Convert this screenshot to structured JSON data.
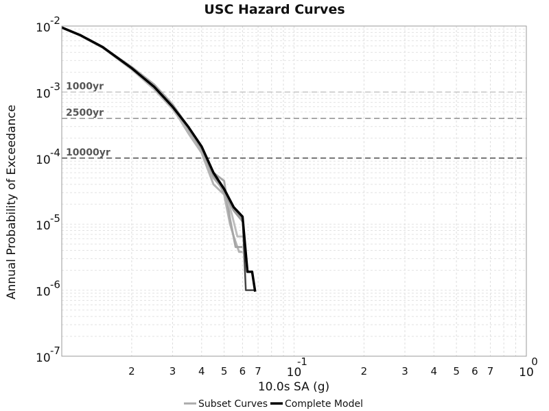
{
  "chart_data": {
    "type": "line",
    "title": "USC Hazard Curves",
    "xlabel": "10.0s SA (g)",
    "ylabel": "Annual Probability of Exceedance",
    "xscale": "log",
    "yscale": "log",
    "xlim": [
      0.01,
      1.0
    ],
    "ylim": [
      1e-07,
      0.01
    ],
    "grid": true,
    "legend_position": "bottom-center",
    "x_major_ticks": [
      {
        "value": 0.1,
        "base": "10",
        "exp": "-1"
      },
      {
        "value": 1.0,
        "base": "10",
        "exp": "0"
      }
    ],
    "x_minor_ticks": [
      {
        "value": 0.02,
        "label": "2"
      },
      {
        "value": 0.03,
        "label": "3"
      },
      {
        "value": 0.04,
        "label": "4"
      },
      {
        "value": 0.05,
        "label": "5"
      },
      {
        "value": 0.06,
        "label": "6"
      },
      {
        "value": 0.07,
        "label": "7"
      },
      {
        "value": 0.2,
        "label": "2"
      },
      {
        "value": 0.3,
        "label": "3"
      },
      {
        "value": 0.4,
        "label": "4"
      },
      {
        "value": 0.5,
        "label": "5"
      },
      {
        "value": 0.6,
        "label": "6"
      },
      {
        "value": 0.7,
        "label": "7"
      }
    ],
    "y_major_ticks": [
      {
        "value": 0.01,
        "base": "10",
        "exp": "-2"
      },
      {
        "value": 0.001,
        "base": "10",
        "exp": "-3"
      },
      {
        "value": 0.0001,
        "base": "10",
        "exp": "-4"
      },
      {
        "value": 1e-05,
        "base": "10",
        "exp": "-5"
      },
      {
        "value": 1e-06,
        "base": "10",
        "exp": "-6"
      },
      {
        "value": 1e-07,
        "base": "10",
        "exp": "-7"
      }
    ],
    "return_periods": [
      {
        "label": "1000yr",
        "value": 0.001,
        "color": "#bbbbbb"
      },
      {
        "label": "2500yr",
        "value": 0.0004,
        "color": "#777777"
      },
      {
        "label": "10000yr",
        "value": 0.0001,
        "color": "#111111"
      }
    ],
    "legend": [
      {
        "label": "Subset Curves",
        "color": "#aaaaaa"
      },
      {
        "label": "Complete Model",
        "color": "#000000"
      }
    ],
    "subset_series": [
      {
        "color": "#b3b3b3",
        "x": [
          0.01,
          0.012,
          0.015,
          0.02,
          0.025,
          0.03,
          0.035,
          0.04,
          0.045,
          0.05,
          0.053,
          0.055,
          0.058,
          0.06
        ],
        "y": [
          0.0095,
          0.0072,
          0.0047,
          0.0023,
          0.0012,
          0.00058,
          0.00024,
          0.00012,
          4e-05,
          2.8e-05,
          1e-05,
          6.5e-06,
          3.8e-06,
          3.8e-06
        ]
      },
      {
        "color": "#a6a6a6",
        "x": [
          0.01,
          0.012,
          0.015,
          0.02,
          0.025,
          0.03,
          0.035,
          0.04,
          0.045,
          0.05,
          0.053,
          0.056,
          0.06
        ],
        "y": [
          0.0095,
          0.0073,
          0.0048,
          0.0024,
          0.0013,
          0.00065,
          0.0003,
          0.00015,
          6e-05,
          4.5e-05,
          1.2e-05,
          4.5e-06,
          4.5e-06
        ]
      },
      {
        "color": "#bdbdbd",
        "x": [
          0.01,
          0.012,
          0.015,
          0.02,
          0.025,
          0.03,
          0.035,
          0.04,
          0.045,
          0.05,
          0.054,
          0.057,
          0.06
        ],
        "y": [
          0.0095,
          0.0072,
          0.0047,
          0.0022,
          0.0011,
          0.00055,
          0.00026,
          0.00013,
          5e-05,
          3.5e-05,
          1.4e-05,
          6.5e-06,
          6.5e-06
        ]
      },
      {
        "color": "#9e9e9e",
        "x": [
          0.01,
          0.012,
          0.015,
          0.02,
          0.025,
          0.03,
          0.035,
          0.04,
          0.045,
          0.05,
          0.055,
          0.06
        ],
        "y": [
          0.0095,
          0.0073,
          0.0048,
          0.0023,
          0.0012,
          0.0006,
          0.00028,
          0.00014,
          5.5e-05,
          3e-05,
          1.6e-05,
          1.1e-05
        ]
      },
      {
        "color": "#b0b0b0",
        "x": [
          0.01,
          0.012,
          0.015,
          0.02,
          0.025,
          0.03,
          0.035,
          0.04,
          0.045,
          0.05,
          0.055,
          0.06
        ],
        "y": [
          0.0095,
          0.0072,
          0.0047,
          0.0023,
          0.00115,
          0.00058,
          0.00027,
          0.00013,
          5e-05,
          3.2e-05,
          1.8e-05,
          1.3e-05
        ]
      },
      {
        "color": "#999999",
        "x": [
          0.01,
          0.012,
          0.015,
          0.02,
          0.025,
          0.03,
          0.035,
          0.04,
          0.045,
          0.05,
          0.055,
          0.06
        ],
        "y": [
          0.0095,
          0.0073,
          0.0048,
          0.0023,
          0.0012,
          0.0006,
          0.00029,
          0.00014,
          5.5e-05,
          3.3e-05,
          1.7e-05,
          1.2e-05
        ]
      }
    ],
    "dark_subset_series": {
      "color": "#444444",
      "x": [
        0.01,
        0.012,
        0.015,
        0.02,
        0.025,
        0.03,
        0.035,
        0.04,
        0.045,
        0.05,
        0.055,
        0.06,
        0.062,
        0.064,
        0.068
      ],
      "y": [
        0.0095,
        0.0073,
        0.0048,
        0.0023,
        0.0012,
        0.0006,
        0.0003,
        0.00015,
        6e-05,
        3.5e-05,
        1.8e-05,
        1.3e-05,
        1e-06,
        1e-06,
        1e-06
      ]
    },
    "complete_model": {
      "color": "#000000",
      "x": [
        0.01,
        0.012,
        0.015,
        0.02,
        0.025,
        0.03,
        0.035,
        0.04,
        0.045,
        0.05,
        0.055,
        0.06,
        0.063,
        0.066,
        0.068
      ],
      "y": [
        0.0095,
        0.0073,
        0.0048,
        0.0023,
        0.0012,
        0.0006,
        0.0003,
        0.00015,
        6e-05,
        3.4e-05,
        1.8e-05,
        1.3e-05,
        1.9e-06,
        1.9e-06,
        9.5e-07
      ]
    }
  }
}
